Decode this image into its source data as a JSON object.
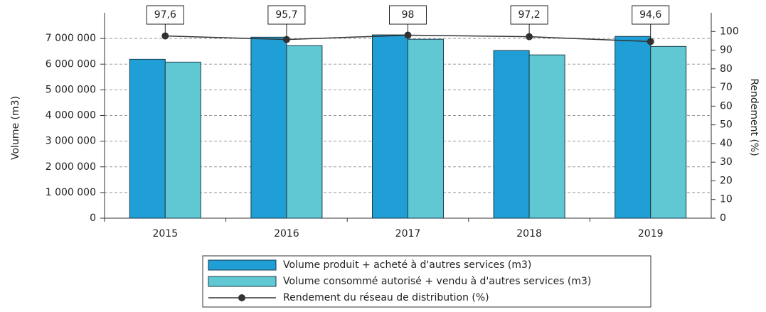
{
  "chart_data": {
    "type": "bar",
    "categories": [
      "2015",
      "2016",
      "2017",
      "2018",
      "2019"
    ],
    "y_label": "Volume (m3)",
    "y2_label": "Rendement (%)",
    "ylim": [
      0,
      8000000
    ],
    "yticks": [
      0,
      {
        "value": 1000000,
        "label": "1 000 000"
      },
      {
        "value": 2000000,
        "label": "2 000 000"
      },
      {
        "value": 3000000,
        "label": "3 000 000"
      },
      {
        "value": 4000000,
        "label": "4 000 000"
      },
      {
        "value": 5000000,
        "label": "5 000 000"
      },
      {
        "value": 6000000,
        "label": "6 000 000"
      },
      {
        "value": 7000000,
        "label": "7 000 000"
      }
    ],
    "y2lim": [
      0,
      110
    ],
    "y2ticks": [
      0,
      10,
      20,
      30,
      40,
      50,
      60,
      70,
      80,
      90,
      100
    ],
    "grid": true,
    "series": [
      {
        "name": "Volume produit + acheté à d'autres services (m3)",
        "color": "#1f9fd6",
        "values": [
          6190000,
          7050000,
          7140000,
          6530000,
          7080000
        ]
      },
      {
        "name": "Volume consommé autorisé + vendu à d'autres services (m3)",
        "color": "#5fc8d2",
        "values": [
          6080000,
          6720000,
          6970000,
          6360000,
          6690000
        ]
      },
      {
        "name": "Rendement du réseau de distribution (%)",
        "color": "#333333",
        "type": "line",
        "axis": "y2",
        "values": [
          97.6,
          95.7,
          98,
          97.2,
          94.6
        ],
        "value_labels": [
          "97,6",
          "95,7",
          "98",
          "97,2",
          "94,6"
        ]
      }
    ]
  }
}
